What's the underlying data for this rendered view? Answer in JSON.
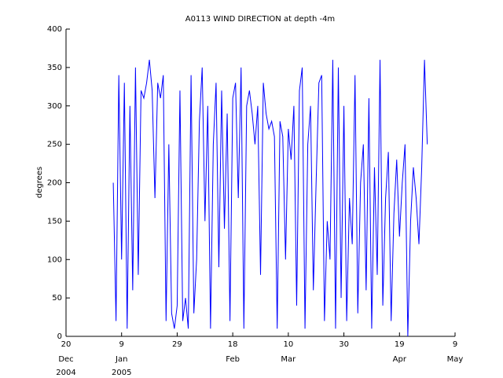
{
  "chart_data": {
    "type": "line",
    "title": "A0113 WIND DIRECTION at depth -4m",
    "ylabel": "degrees",
    "x": [
      "2005-01-06",
      "2005-01-07",
      "2005-01-08",
      "2005-01-09",
      "2005-01-10",
      "2005-01-11",
      "2005-01-12",
      "2005-01-13",
      "2005-01-14",
      "2005-01-15",
      "2005-01-16",
      "2005-01-17",
      "2005-01-18",
      "2005-01-19",
      "2005-01-20",
      "2005-01-21",
      "2005-01-22",
      "2005-01-23",
      "2005-01-24",
      "2005-01-25",
      "2005-01-26",
      "2005-01-27",
      "2005-01-28",
      "2005-01-29",
      "2005-01-30",
      "2005-01-31",
      "2005-02-01",
      "2005-02-02",
      "2005-02-03",
      "2005-02-04",
      "2005-02-05",
      "2005-02-06",
      "2005-02-07",
      "2005-02-08",
      "2005-02-09",
      "2005-02-10",
      "2005-02-11",
      "2005-02-12",
      "2005-02-13",
      "2005-02-14",
      "2005-02-15",
      "2005-02-16",
      "2005-02-17",
      "2005-02-18",
      "2005-02-19",
      "2005-02-20",
      "2005-02-21",
      "2005-02-22",
      "2005-02-23",
      "2005-02-24",
      "2005-02-25",
      "2005-02-26",
      "2005-02-27",
      "2005-02-28",
      "2005-03-01",
      "2005-03-02",
      "2005-03-03",
      "2005-03-04",
      "2005-03-05",
      "2005-03-06",
      "2005-03-07",
      "2005-03-08",
      "2005-03-09",
      "2005-03-10",
      "2005-03-11",
      "2005-03-12",
      "2005-03-13",
      "2005-03-14",
      "2005-03-15",
      "2005-03-16",
      "2005-03-17",
      "2005-03-18",
      "2005-03-19",
      "2005-03-20",
      "2005-03-21",
      "2005-03-22",
      "2005-03-23",
      "2005-03-24",
      "2005-03-25",
      "2005-03-26",
      "2005-03-27",
      "2005-03-28",
      "2005-03-29",
      "2005-03-30",
      "2005-03-31",
      "2005-04-01",
      "2005-04-02",
      "2005-04-03",
      "2005-04-04",
      "2005-04-05",
      "2005-04-06",
      "2005-04-07",
      "2005-04-08",
      "2005-04-09",
      "2005-04-10",
      "2005-04-11",
      "2005-04-12",
      "2005-04-13",
      "2005-04-14",
      "2005-04-15",
      "2005-04-16",
      "2005-04-17",
      "2005-04-18",
      "2005-04-19",
      "2005-04-20",
      "2005-04-21",
      "2005-04-22",
      "2005-04-23",
      "2005-04-24",
      "2005-04-25",
      "2005-04-26",
      "2005-04-27",
      "2005-04-28",
      "2005-04-29"
    ],
    "series": [
      {
        "color": "#0000ff",
        "values": [
          200,
          20,
          340,
          100,
          330,
          10,
          300,
          60,
          350,
          80,
          320,
          310,
          330,
          360,
          320,
          180,
          330,
          310,
          340,
          20,
          250,
          30,
          10,
          40,
          320,
          20,
          50,
          10,
          340,
          30,
          100,
          280,
          350,
          150,
          300,
          10,
          250,
          330,
          90,
          320,
          140,
          290,
          20,
          310,
          330,
          180,
          350,
          10,
          300,
          320,
          290,
          250,
          300,
          80,
          330,
          290,
          270,
          280,
          260,
          10,
          280,
          260,
          100,
          270,
          230,
          300,
          40,
          320,
          350,
          10,
          250,
          300,
          60,
          200,
          330,
          340,
          20,
          150,
          100,
          360,
          10,
          350,
          50,
          300,
          20,
          180,
          120,
          340,
          30,
          200,
          250,
          60,
          310,
          10,
          220,
          80,
          360,
          40,
          180,
          240,
          20,
          160,
          230,
          130,
          200,
          250,
          0,
          150,
          220,
          180,
          120,
          220,
          360,
          250
        ]
      }
    ],
    "xlim": [
      "2004-12-20",
      "2005-05-09"
    ],
    "xticks": [
      {
        "value": "2004-12-20",
        "label": "20"
      },
      {
        "value": "2005-01-09",
        "label": "9"
      },
      {
        "value": "2005-01-29",
        "label": "29"
      },
      {
        "value": "2005-02-18",
        "label": "18"
      },
      {
        "value": "2005-03-10",
        "label": "10"
      },
      {
        "value": "2005-03-30",
        "label": "30"
      },
      {
        "value": "2005-04-19",
        "label": "19"
      },
      {
        "value": "2005-05-09",
        "label": "9"
      }
    ],
    "xtick_months": [
      {
        "value": "2004-12-20",
        "label": "Dec"
      },
      {
        "value": "2005-01-09",
        "label": "Jan"
      },
      {
        "value": "2005-02-18",
        "label": "Feb"
      },
      {
        "value": "2005-03-10",
        "label": "Mar"
      },
      {
        "value": "2005-04-19",
        "label": "Apr"
      },
      {
        "value": "2005-05-09",
        "label": "May"
      }
    ],
    "xtick_years": [
      {
        "value": "2004-12-20",
        "label": "2004"
      },
      {
        "value": "2005-01-09",
        "label": "2005"
      }
    ],
    "ylim": [
      0,
      400
    ],
    "yticks": [
      0,
      50,
      100,
      150,
      200,
      250,
      300,
      350,
      400
    ]
  }
}
